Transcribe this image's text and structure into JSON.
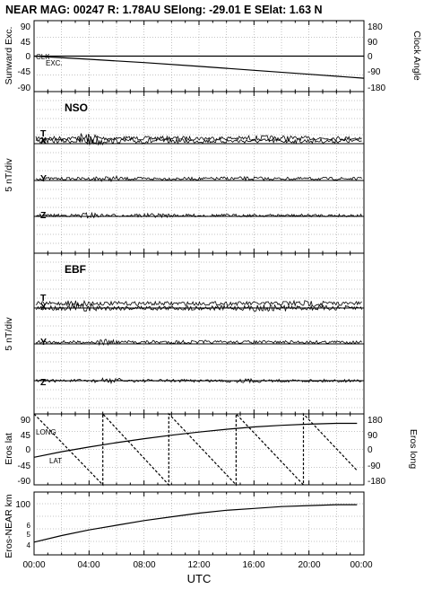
{
  "title": "NEAR MAG: 00247  R: 1.78AU  SElong:  -29.01 E  SElat:    1.63 N",
  "xlabel": "UTC",
  "x_ticks": [
    "00:00",
    "04:00",
    "08:00",
    "12:00",
    "16:00",
    "20:00",
    "00:00"
  ],
  "chart_data": [
    {
      "type": "line",
      "panel": "sunward-clock",
      "ylabel_left": "Sunward Exc.",
      "ylabel_right": "Clock Angle",
      "yticks_left": [
        "90",
        "45",
        "0",
        "-45",
        "-90"
      ],
      "yticks_right": [
        "180",
        "90",
        "0",
        "-90",
        "-180"
      ],
      "ylim_left": [
        -90,
        90
      ],
      "ylim_right": [
        -180,
        180
      ],
      "annotations": [
        "CLK",
        "EXC."
      ],
      "grid": true,
      "series": [
        {
          "label": "EXC.",
          "x": [
            0,
            24
          ],
          "y": [
            0,
            0
          ]
        },
        {
          "label": "CLK",
          "x": [
            0,
            4,
            8,
            12,
            16,
            20,
            24
          ],
          "y": [
            0,
            -16,
            -33,
            -52,
            -72,
            -92,
            -112
          ]
        }
      ]
    },
    {
      "type": "line",
      "panel": "NSO",
      "name": "NSO",
      "ylabel": "5 nT/div",
      "components": [
        "T",
        "X",
        "Y",
        "Z"
      ],
      "grid": true
    },
    {
      "type": "line",
      "panel": "EBF",
      "name": "EBF",
      "ylabel": "5 nT/div",
      "components": [
        "T",
        "X",
        "Y",
        "Z"
      ],
      "grid": true
    },
    {
      "type": "line",
      "panel": "eros-position",
      "ylabel_left": "Eros lat",
      "ylabel_right": "Eros long",
      "yticks_left": [
        "90",
        "45",
        "0",
        "-45",
        "-90"
      ],
      "yticks_right": [
        "180",
        "90",
        "0",
        "-90",
        "-180"
      ],
      "ylim_left": [
        -90,
        90
      ],
      "ylim_right": [
        -180,
        180
      ],
      "annotations": [
        "LONG",
        "LAT"
      ],
      "grid": true,
      "series": [
        {
          "label": "LAT",
          "x": [
            0,
            2,
            4,
            6,
            8,
            10,
            12,
            14,
            16,
            18,
            20,
            22,
            23.5
          ],
          "y": [
            -20,
            -6,
            6,
            17,
            27,
            36,
            44,
            51,
            57,
            61,
            64,
            66,
            66
          ]
        },
        {
          "label": "LONG",
          "x": [
            0,
            5.0,
            5.0,
            9.8,
            9.8,
            14.7,
            14.7,
            19.6,
            19.6,
            23.5
          ],
          "y": [
            180,
            -180,
            180,
            -180,
            180,
            -180,
            180,
            -180,
            180,
            -107
          ]
        }
      ]
    },
    {
      "type": "line",
      "panel": "distance",
      "ylabel": "Eros-NEAR km",
      "yticks": [
        "100",
        "6",
        "5",
        "4"
      ],
      "grid": true,
      "series": [
        {
          "label": "Eros-NEAR distance",
          "x": [
            0,
            2,
            4,
            6,
            8,
            10,
            12,
            14,
            16,
            18,
            20,
            22,
            23.5
          ],
          "y": [
            61,
            68,
            74,
            79,
            84,
            88,
            92,
            95,
            97,
            99,
            100,
            101,
            101
          ]
        }
      ]
    }
  ]
}
